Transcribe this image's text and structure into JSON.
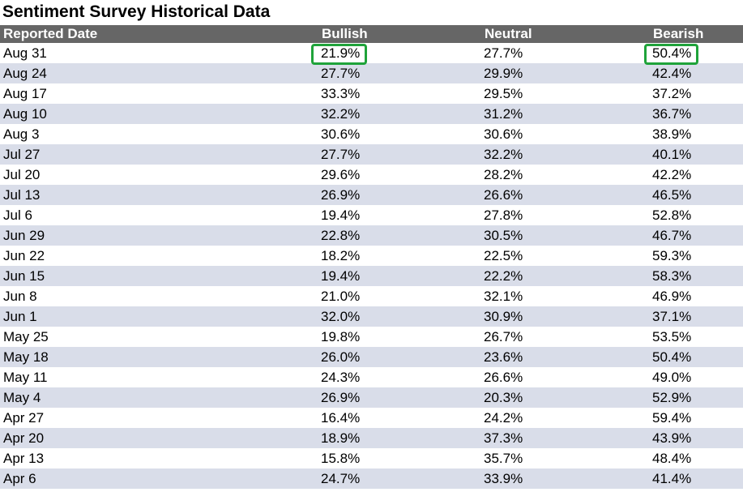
{
  "title": "Sentiment Survey Historical Data",
  "columns": {
    "date": "Reported Date",
    "bullish": "Bullish",
    "neutral": "Neutral",
    "bearish": "Bearish"
  },
  "colors": {
    "header_bg": "#666666",
    "row_alt_bg": "#d9dde9",
    "highlight": "#1fa33a"
  },
  "highlighted_row": 0,
  "highlighted_columns": [
    "bullish",
    "bearish"
  ],
  "rows": [
    {
      "date": "Aug 31",
      "bullish": "21.9%",
      "neutral": "27.7%",
      "bearish": "50.4%"
    },
    {
      "date": "Aug 24",
      "bullish": "27.7%",
      "neutral": "29.9%",
      "bearish": "42.4%"
    },
    {
      "date": "Aug 17",
      "bullish": "33.3%",
      "neutral": "29.5%",
      "bearish": "37.2%"
    },
    {
      "date": "Aug 10",
      "bullish": "32.2%",
      "neutral": "31.2%",
      "bearish": "36.7%"
    },
    {
      "date": "Aug 3",
      "bullish": "30.6%",
      "neutral": "30.6%",
      "bearish": "38.9%"
    },
    {
      "date": "Jul 27",
      "bullish": "27.7%",
      "neutral": "32.2%",
      "bearish": "40.1%"
    },
    {
      "date": "Jul 20",
      "bullish": "29.6%",
      "neutral": "28.2%",
      "bearish": "42.2%"
    },
    {
      "date": "Jul 13",
      "bullish": "26.9%",
      "neutral": "26.6%",
      "bearish": "46.5%"
    },
    {
      "date": "Jul 6",
      "bullish": "19.4%",
      "neutral": "27.8%",
      "bearish": "52.8%"
    },
    {
      "date": "Jun 29",
      "bullish": "22.8%",
      "neutral": "30.5%",
      "bearish": "46.7%"
    },
    {
      "date": "Jun 22",
      "bullish": "18.2%",
      "neutral": "22.5%",
      "bearish": "59.3%"
    },
    {
      "date": "Jun 15",
      "bullish": "19.4%",
      "neutral": "22.2%",
      "bearish": "58.3%"
    },
    {
      "date": "Jun 8",
      "bullish": "21.0%",
      "neutral": "32.1%",
      "bearish": "46.9%"
    },
    {
      "date": "Jun 1",
      "bullish": "32.0%",
      "neutral": "30.9%",
      "bearish": "37.1%"
    },
    {
      "date": "May 25",
      "bullish": "19.8%",
      "neutral": "26.7%",
      "bearish": "53.5%"
    },
    {
      "date": "May 18",
      "bullish": "26.0%",
      "neutral": "23.6%",
      "bearish": "50.4%"
    },
    {
      "date": "May 11",
      "bullish": "24.3%",
      "neutral": "26.6%",
      "bearish": "49.0%"
    },
    {
      "date": "May 4",
      "bullish": "26.9%",
      "neutral": "20.3%",
      "bearish": "52.9%"
    },
    {
      "date": "Apr 27",
      "bullish": "16.4%",
      "neutral": "24.2%",
      "bearish": "59.4%"
    },
    {
      "date": "Apr 20",
      "bullish": "18.9%",
      "neutral": "37.3%",
      "bearish": "43.9%"
    },
    {
      "date": "Apr 13",
      "bullish": "15.8%",
      "neutral": "35.7%",
      "bearish": "48.4%"
    },
    {
      "date": "Apr 6",
      "bullish": "24.7%",
      "neutral": "33.9%",
      "bearish": "41.4%"
    }
  ]
}
